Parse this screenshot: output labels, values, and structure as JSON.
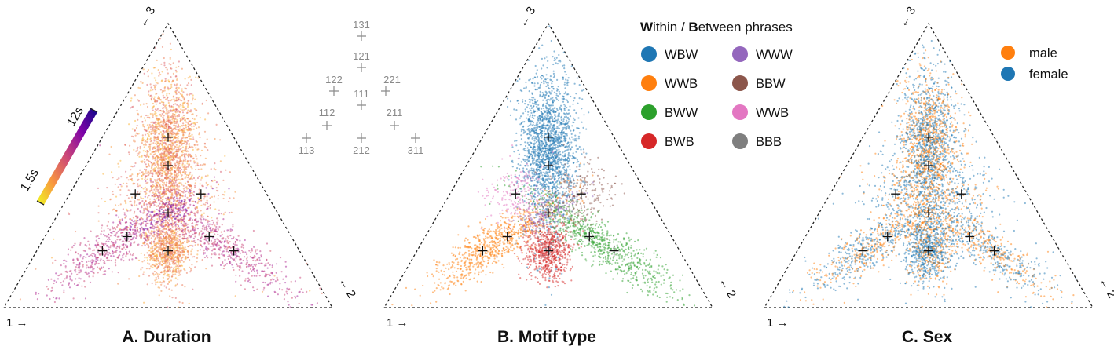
{
  "chart_data": [
    {
      "type": "scatter",
      "subtype": "ternary",
      "title": "A. Duration",
      "corner_labels": {
        "bottom_left": "1 →",
        "right": "← 2",
        "top": "← 3"
      },
      "markers": [
        {
          "code": "131",
          "a": 0.2,
          "b": 0.2,
          "c": 0.6
        },
        {
          "code": "121",
          "a": 0.25,
          "b": 0.25,
          "c": 0.5
        },
        {
          "code": "122",
          "a": 0.2,
          "b": 0.4,
          "c": 0.4
        },
        {
          "code": "221",
          "a": 0.4,
          "b": 0.2,
          "c": 0.4
        },
        {
          "code": "111",
          "a": 0.333,
          "b": 0.333,
          "c": 0.333
        },
        {
          "code": "112",
          "a": 0.25,
          "b": 0.5,
          "c": 0.25
        },
        {
          "code": "211",
          "a": 0.5,
          "b": 0.25,
          "c": 0.25
        },
        {
          "code": "113",
          "a": 0.2,
          "b": 0.6,
          "c": 0.2
        },
        {
          "code": "212",
          "a": 0.4,
          "b": 0.4,
          "c": 0.2
        },
        {
          "code": "311",
          "a": 0.6,
          "b": 0.2,
          "c": 0.2
        }
      ],
      "clusters": [
        {
          "marker": "131",
          "n": 1400,
          "spread": [
            0.045,
            0.1
          ],
          "rot": 0,
          "vmin": 0.55,
          "vmax": 0.85
        },
        {
          "marker": "121",
          "n": 250,
          "spread": [
            0.04,
            0.05
          ],
          "rot": 0,
          "vmin": 0.55,
          "vmax": 0.85
        },
        {
          "marker": "212",
          "n": 800,
          "spread": [
            0.035,
            0.045
          ],
          "rot": 0,
          "vmin": 0.6,
          "vmax": 0.85
        },
        {
          "marker": "111",
          "n": 300,
          "spread": [
            0.03,
            0.11
          ],
          "rot": 0,
          "vmin": 0.55,
          "vmax": 0.75
        },
        {
          "marker": "112",
          "n": 380,
          "spread": [
            0.13,
            0.028
          ],
          "rot": -0.6,
          "vmin": 0.35,
          "vmax": 0.55
        },
        {
          "marker": "113",
          "n": 260,
          "spread": [
            0.1,
            0.03
          ],
          "rot": -0.6,
          "vmin": 0.35,
          "vmax": 0.55
        },
        {
          "marker": "211",
          "n": 380,
          "spread": [
            0.13,
            0.028
          ],
          "rot": 0.6,
          "vmin": 0.35,
          "vmax": 0.55
        },
        {
          "marker": "311",
          "n": 260,
          "spread": [
            0.12,
            0.03
          ],
          "rot": 0.6,
          "vmin": 0.35,
          "vmax": 0.55
        },
        {
          "marker": "122",
          "n": 150,
          "spread": [
            0.05,
            0.05
          ],
          "rot": 0,
          "vmin": 0.55,
          "vmax": 0.85
        },
        {
          "marker": "221",
          "n": 150,
          "spread": [
            0.05,
            0.05
          ],
          "rot": 0,
          "vmin": 0.55,
          "vmax": 0.85
        },
        {
          "marker": "111",
          "n": 120,
          "spread": [
            0.06,
            0.02
          ],
          "rot": -0.5,
          "vmin": 0.15,
          "vmax": 0.3
        },
        {
          "marker": "111",
          "n": 120,
          "spread": [
            0.3,
            0.25
          ],
          "rot": 0,
          "vmin": 0.5,
          "vmax": 0.85
        }
      ],
      "colorbar": {
        "min_label": "1.5s",
        "max_label": "12s",
        "colormap": "plasma"
      }
    },
    {
      "type": "scatter",
      "subtype": "ternary",
      "title": "B. Motif type",
      "corner_labels": {
        "bottom_left": "1 →",
        "right": "← 2",
        "top": "← 3"
      },
      "legend": {
        "title_parts": [
          {
            "text": "W",
            "bold": true
          },
          {
            "text": "ithin / ",
            "bold": false
          },
          {
            "text": "B",
            "bold": true
          },
          {
            "text": "etween phrases",
            "bold": false
          }
        ],
        "placement": "top-right",
        "items": [
          {
            "label": "WBW",
            "color": "#1f77b4"
          },
          {
            "label": "WWB",
            "color": "#ff7f0e"
          },
          {
            "label": "BWW",
            "color": "#2ca02c"
          },
          {
            "label": "BWB",
            "color": "#d62728"
          },
          {
            "label": "WWW",
            "color": "#9467bd"
          },
          {
            "label": "BBW",
            "color": "#8c564b"
          },
          {
            "label": "WWB",
            "color": "#e377c2"
          },
          {
            "label": "BBB",
            "color": "#7f7f7f"
          }
        ]
      },
      "clusters": [
        {
          "marker": "131",
          "n": 1400,
          "spread": [
            0.045,
            0.1
          ],
          "rot": 0,
          "color": "#1f77b4"
        },
        {
          "marker": "121",
          "n": 250,
          "spread": [
            0.04,
            0.05
          ],
          "rot": 0,
          "color": "#1f77b4"
        },
        {
          "marker": "111",
          "n": 150,
          "spread": [
            0.03,
            0.1
          ],
          "rot": 0,
          "color": "#1f77b4"
        },
        {
          "marker": "112",
          "n": 450,
          "spread": [
            0.13,
            0.028
          ],
          "rot": -0.6,
          "color": "#ff7f0e"
        },
        {
          "marker": "113",
          "n": 300,
          "spread": [
            0.1,
            0.03
          ],
          "rot": -0.6,
          "color": "#ff7f0e"
        },
        {
          "marker": "211",
          "n": 450,
          "spread": [
            0.13,
            0.028
          ],
          "rot": 0.6,
          "color": "#2ca02c"
        },
        {
          "marker": "311",
          "n": 300,
          "spread": [
            0.12,
            0.03
          ],
          "rot": 0.6,
          "color": "#2ca02c"
        },
        {
          "marker": "212",
          "n": 650,
          "spread": [
            0.035,
            0.045
          ],
          "rot": 0,
          "color": "#d62728"
        },
        {
          "marker": "111",
          "n": 150,
          "spread": [
            0.06,
            0.02
          ],
          "rot": -0.5,
          "color": "#9467bd"
        },
        {
          "marker": "221",
          "n": 200,
          "spread": [
            0.05,
            0.05
          ],
          "rot": 0,
          "color": "#8c564b"
        },
        {
          "marker": "122",
          "n": 200,
          "spread": [
            0.05,
            0.05
          ],
          "rot": 0,
          "color": "#e377c2"
        },
        {
          "marker": "111",
          "n": 60,
          "spread": [
            0.05,
            0.05
          ],
          "rot": 0,
          "color": "#7f7f7f"
        }
      ]
    },
    {
      "type": "scatter",
      "subtype": "ternary",
      "title": "C. Sex",
      "corner_labels": {
        "bottom_left": "1 →",
        "right": "← 2",
        "top": "← 3"
      },
      "legend": {
        "placement": "top-right",
        "items": [
          {
            "label": "male",
            "color": "#ff7f0e"
          },
          {
            "label": "female",
            "color": "#1f77b4"
          }
        ]
      },
      "clusters": [
        {
          "marker": "131",
          "n": 1400,
          "spread": [
            0.045,
            0.1
          ],
          "rot": 0,
          "male_frac": 0.45
        },
        {
          "marker": "121",
          "n": 250,
          "spread": [
            0.04,
            0.05
          ],
          "rot": 0,
          "male_frac": 0.45
        },
        {
          "marker": "212",
          "n": 700,
          "spread": [
            0.035,
            0.045
          ],
          "rot": 0,
          "male_frac": 0.3
        },
        {
          "marker": "111",
          "n": 300,
          "spread": [
            0.03,
            0.11
          ],
          "rot": 0,
          "male_frac": 0.4
        },
        {
          "marker": "112",
          "n": 400,
          "spread": [
            0.13,
            0.028
          ],
          "rot": -0.6,
          "male_frac": 0.5
        },
        {
          "marker": "113",
          "n": 280,
          "spread": [
            0.1,
            0.03
          ],
          "rot": -0.6,
          "male_frac": 0.35
        },
        {
          "marker": "211",
          "n": 400,
          "spread": [
            0.13,
            0.028
          ],
          "rot": 0.6,
          "male_frac": 0.55
        },
        {
          "marker": "311",
          "n": 280,
          "spread": [
            0.12,
            0.03
          ],
          "rot": 0.6,
          "male_frac": 0.35
        },
        {
          "marker": "122",
          "n": 150,
          "spread": [
            0.05,
            0.05
          ],
          "rot": 0,
          "male_frac": 0.4
        },
        {
          "marker": "221",
          "n": 150,
          "spread": [
            0.05,
            0.05
          ],
          "rot": 0,
          "male_frac": 0.4
        },
        {
          "marker": "111",
          "n": 300,
          "spread": [
            0.3,
            0.25
          ],
          "rot": 0,
          "male_frac": 0.2
        }
      ]
    }
  ],
  "marker_key": [
    {
      "label": "131"
    },
    {
      "label": "121"
    },
    {
      "label": "122"
    },
    {
      "label": "221"
    },
    {
      "label": "111"
    },
    {
      "label": "112"
    },
    {
      "label": "211"
    },
    {
      "label": "113"
    },
    {
      "label": "212"
    },
    {
      "label": "311"
    }
  ]
}
